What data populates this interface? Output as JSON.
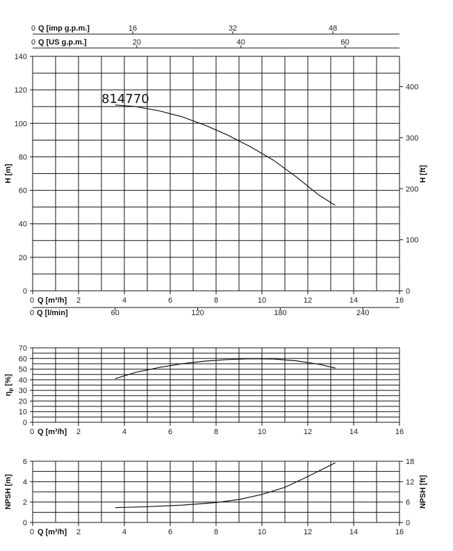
{
  "chart_data": [
    {
      "type": "line",
      "name": "head-curve",
      "model_label": "814770",
      "xlabel": "Q [m³/h]",
      "ylabel": "H [m]",
      "ylabel_right": "H [ft]",
      "xlim": [
        0,
        16
      ],
      "ylim": [
        0,
        140
      ],
      "x_ticks": [
        0,
        2,
        4,
        6,
        8,
        10,
        12,
        14,
        16
      ],
      "y_ticks": [
        0,
        20,
        40,
        60,
        80,
        100,
        120,
        140
      ],
      "y_right_ticks": [
        0,
        100,
        200,
        300,
        400
      ],
      "top_axes": [
        {
          "label": "Q [imp g.p.m.]",
          "ticks": [
            "0",
            "16",
            "32",
            "48"
          ],
          "values": [
            0,
            16,
            32,
            48
          ],
          "m3h_per_unit": 0.2728
        },
        {
          "label": "Q [US g.p.m.]",
          "ticks": [
            "0",
            "20",
            "40",
            "60"
          ],
          "values": [
            0,
            20,
            40,
            60
          ],
          "m3h_per_unit": 0.2271
        }
      ],
      "bottom_secondary_axis": {
        "label": "Q [l/min]",
        "ticks": [
          "0",
          "60",
          "120",
          "180",
          "240"
        ],
        "values": [
          0,
          60,
          120,
          180,
          240
        ],
        "m3h_per_unit": 0.06
      },
      "series": [
        {
          "x": [
            3.6,
            4.5,
            5.5,
            6.5,
            7.5,
            8.5,
            9.5,
            10.5,
            11.5,
            12.5,
            13.2
          ],
          "y": [
            111,
            110,
            107.5,
            104,
            99,
            93,
            86,
            78,
            68,
            57,
            51
          ]
        }
      ]
    },
    {
      "type": "line",
      "name": "efficiency-curve",
      "xlabel": "Q [m³/h]",
      "ylabel": "η",
      "ylabel_sub": "p",
      "ylabel_unit": "[%]",
      "xlim": [
        0,
        16
      ],
      "ylim": [
        0,
        70
      ],
      "x_ticks": [
        0,
        2,
        4,
        6,
        8,
        10,
        12,
        14,
        16
      ],
      "y_ticks": [
        0,
        10,
        20,
        30,
        40,
        50,
        60,
        70
      ],
      "series": [
        {
          "x": [
            3.6,
            4.5,
            5.5,
            6.5,
            7.5,
            8.5,
            9.5,
            10.5,
            11.5,
            12.5,
            13.2
          ],
          "y": [
            41,
            47,
            51.5,
            55,
            57.5,
            59,
            59.8,
            59.5,
            57.8,
            54.5,
            51
          ]
        }
      ]
    },
    {
      "type": "line",
      "name": "npsh-curve",
      "xlabel": "Q [m³/h]",
      "ylabel": "NPSH [m]",
      "ylabel_right": "NPSH [ft]",
      "xlim": [
        0,
        16
      ],
      "ylim": [
        0,
        6
      ],
      "x_ticks": [
        0,
        2,
        4,
        6,
        8,
        10,
        12,
        14,
        16
      ],
      "y_ticks": [
        0,
        2,
        4,
        6
      ],
      "y_right_ticks": [
        0,
        6,
        12,
        18
      ],
      "series": [
        {
          "x": [
            3.6,
            5,
            6.5,
            8,
            9,
            10,
            11,
            12,
            13.2
          ],
          "y": [
            1.45,
            1.55,
            1.7,
            1.95,
            2.25,
            2.75,
            3.45,
            4.5,
            5.85
          ]
        }
      ]
    }
  ]
}
